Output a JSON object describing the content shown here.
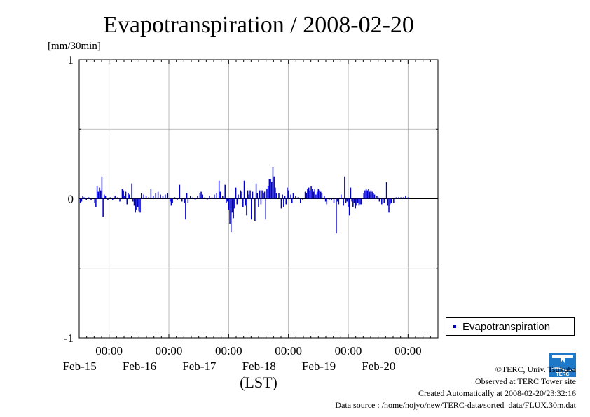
{
  "chart_data": {
    "type": "bar",
    "title": "Evapotranspiration / 2008-02-20",
    "ylabel": "[mm/30min]",
    "xlabel": "(LST)",
    "ylim": [
      -1,
      1
    ],
    "y_ticks": [
      "1",
      "0",
      "-1"
    ],
    "x_range_days": [
      14.5,
      20.5
    ],
    "x_ticks": [
      {
        "time": "00:00",
        "date": "Feb-15"
      },
      {
        "time": "00:00",
        "date": "Feb-16"
      },
      {
        "time": "00:00",
        "date": "Feb-17"
      },
      {
        "time": "00:00",
        "date": "Feb-18"
      },
      {
        "time": "00:00",
        "date": "Feb-19"
      },
      {
        "time": "00:00",
        "date": "Feb-20"
      }
    ],
    "grid": true,
    "legend_position": "right",
    "series": [
      {
        "name": "Evapotranspiration",
        "color": "#0000c8",
        "interval": "30min",
        "points": [
          [
            14.52,
            -0.03
          ],
          [
            14.54,
            -0.02
          ],
          [
            14.56,
            0.02
          ],
          [
            14.58,
            0.01
          ],
          [
            14.6,
            0
          ],
          [
            14.62,
            -0.01
          ],
          [
            14.66,
            0.01
          ],
          [
            14.7,
            -0.01
          ],
          [
            14.76,
            -0.03
          ],
          [
            14.78,
            -0.06
          ],
          [
            14.8,
            0.09
          ],
          [
            14.82,
            0.05
          ],
          [
            14.84,
            0.08
          ],
          [
            14.86,
            0.06
          ],
          [
            14.88,
            0.16
          ],
          [
            14.9,
            -0.13
          ],
          [
            14.92,
            0.03
          ],
          [
            14.94,
            0.02
          ],
          [
            14.98,
            -0.01
          ],
          [
            15.02,
            0.01
          ],
          [
            15.06,
            -0.01
          ],
          [
            15.1,
            0.02
          ],
          [
            15.14,
            0.01
          ],
          [
            15.18,
            -0.02
          ],
          [
            15.22,
            0.07
          ],
          [
            15.24,
            0.06
          ],
          [
            15.26,
            0.02
          ],
          [
            15.28,
            0.05
          ],
          [
            15.3,
            -0.04
          ],
          [
            15.32,
            0.04
          ],
          [
            15.34,
            0.03
          ],
          [
            15.38,
            0.11
          ],
          [
            15.4,
            -0.02
          ],
          [
            15.42,
            -0.05
          ],
          [
            15.44,
            -0.1
          ],
          [
            15.46,
            -0.08
          ],
          [
            15.48,
            -0.06
          ],
          [
            15.5,
            -0.09
          ],
          [
            15.52,
            -0.1
          ],
          [
            15.54,
            0.04
          ],
          [
            15.58,
            0.03
          ],
          [
            15.62,
            0.02
          ],
          [
            15.66,
            0.01
          ],
          [
            15.7,
            0.07
          ],
          [
            15.74,
            0.02
          ],
          [
            15.78,
            0.04
          ],
          [
            15.82,
            0.05
          ],
          [
            15.86,
            0.03
          ],
          [
            15.9,
            0.02
          ],
          [
            15.94,
            0.03
          ],
          [
            15.98,
            0.04
          ],
          [
            16.02,
            -0.02
          ],
          [
            16.04,
            -0.05
          ],
          [
            16.06,
            -0.03
          ],
          [
            16.1,
            0.01
          ],
          [
            16.14,
            -0.01
          ],
          [
            16.18,
            0.1
          ],
          [
            16.22,
            -0.02
          ],
          [
            16.26,
            -0.03
          ],
          [
            16.28,
            -0.15
          ],
          [
            16.3,
            0.04
          ],
          [
            16.32,
            -0.03
          ],
          [
            16.36,
            0.02
          ],
          [
            16.4,
            0.01
          ],
          [
            16.44,
            -0.01
          ],
          [
            16.48,
            0.02
          ],
          [
            16.52,
            0.04
          ],
          [
            16.54,
            0.05
          ],
          [
            16.56,
            0.03
          ],
          [
            16.6,
            0.01
          ],
          [
            16.64,
            -0.01
          ],
          [
            16.68,
            0.02
          ],
          [
            16.72,
            0.01
          ],
          [
            16.76,
            0.03
          ],
          [
            16.8,
            0.04
          ],
          [
            16.84,
            0.13
          ],
          [
            16.86,
            0.05
          ],
          [
            16.9,
            0.02
          ],
          [
            16.94,
            0.1
          ],
          [
            16.96,
            -0.03
          ],
          [
            16.98,
            -0.02
          ],
          [
            17.0,
            -0.08
          ],
          [
            17.02,
            -0.18
          ],
          [
            17.04,
            -0.24
          ],
          [
            17.06,
            -0.1
          ],
          [
            17.08,
            -0.14
          ],
          [
            17.1,
            -0.07
          ],
          [
            17.12,
            0.08
          ],
          [
            17.14,
            -0.04
          ],
          [
            17.16,
            0.03
          ],
          [
            17.2,
            0.06
          ],
          [
            17.22,
            0.05
          ],
          [
            17.24,
            -0.06
          ],
          [
            17.26,
            0.13
          ],
          [
            17.28,
            -0.05
          ],
          [
            17.3,
            -0.12
          ],
          [
            17.32,
            0.06
          ],
          [
            17.34,
            0.03
          ],
          [
            17.36,
            0.06
          ],
          [
            17.38,
            -0.15
          ],
          [
            17.4,
            0.05
          ],
          [
            17.44,
            -0.16
          ],
          [
            17.46,
            0.11
          ],
          [
            17.48,
            0.04
          ],
          [
            17.5,
            -0.06
          ],
          [
            17.52,
            0.06
          ],
          [
            17.54,
            -0.04
          ],
          [
            17.56,
            0.06
          ],
          [
            17.58,
            0.04
          ],
          [
            17.6,
            0.05
          ],
          [
            17.62,
            -0.15
          ],
          [
            17.64,
            0.07
          ],
          [
            17.66,
            0.09
          ],
          [
            17.68,
            0.14
          ],
          [
            17.7,
            0.14
          ],
          [
            17.72,
            0.12
          ],
          [
            17.74,
            0.23
          ],
          [
            17.76,
            0.16
          ],
          [
            17.78,
            0.08
          ],
          [
            17.8,
            0.04
          ],
          [
            17.84,
            0.04
          ],
          [
            17.88,
            -0.07
          ],
          [
            17.9,
            0.03
          ],
          [
            17.92,
            -0.06
          ],
          [
            17.94,
            0.02
          ],
          [
            17.96,
            -0.04
          ],
          [
            17.98,
            0.08
          ],
          [
            18.0,
            0.06
          ],
          [
            18.04,
            0.03
          ],
          [
            18.06,
            -0.03
          ],
          [
            18.08,
            0.04
          ],
          [
            18.12,
            0.02
          ],
          [
            18.16,
            0.01
          ],
          [
            18.2,
            -0.03
          ],
          [
            18.24,
            -0.01
          ],
          [
            18.28,
            0.05
          ],
          [
            18.3,
            0.04
          ],
          [
            18.32,
            0.07
          ],
          [
            18.34,
            0.08
          ],
          [
            18.36,
            0.06
          ],
          [
            18.38,
            0.09
          ],
          [
            18.4,
            0.07
          ],
          [
            18.42,
            0.05
          ],
          [
            18.44,
            0.07
          ],
          [
            18.46,
            0.03
          ],
          [
            18.48,
            0.05
          ],
          [
            18.5,
            0.07
          ],
          [
            18.52,
            0.06
          ],
          [
            18.54,
            0.05
          ],
          [
            18.56,
            0.04
          ],
          [
            18.6,
            0.02
          ],
          [
            18.62,
            -0.02
          ],
          [
            18.64,
            -0.04
          ],
          [
            18.68,
            -0.01
          ],
          [
            18.72,
            -0.01
          ],
          [
            18.76,
            -0.03
          ],
          [
            18.8,
            -0.25
          ],
          [
            18.82,
            -0.02
          ],
          [
            18.84,
            -0.04
          ],
          [
            18.88,
            0.03
          ],
          [
            18.92,
            -0.05
          ],
          [
            18.94,
            0.16
          ],
          [
            18.96,
            -0.03
          ],
          [
            18.98,
            -0.02
          ],
          [
            19.0,
            -0.06
          ],
          [
            19.02,
            -0.12
          ],
          [
            19.04,
            0.08
          ],
          [
            19.06,
            -0.02
          ],
          [
            19.08,
            -0.06
          ],
          [
            19.1,
            -0.03
          ],
          [
            19.12,
            -0.07
          ],
          [
            19.14,
            -0.05
          ],
          [
            19.16,
            -0.03
          ],
          [
            19.18,
            -0.05
          ],
          [
            19.2,
            -0.04
          ],
          [
            19.22,
            -0.04
          ],
          [
            19.26,
            0.04
          ],
          [
            19.28,
            0.06
          ],
          [
            19.3,
            0.07
          ],
          [
            19.32,
            0.06
          ],
          [
            19.34,
            0.07
          ],
          [
            19.36,
            0.05
          ],
          [
            19.38,
            0.06
          ],
          [
            19.4,
            0.05
          ],
          [
            19.42,
            0.04
          ],
          [
            19.44,
            0.03
          ],
          [
            19.48,
            0.02
          ],
          [
            19.5,
            0.01
          ],
          [
            19.52,
            -0.02
          ],
          [
            19.56,
            -0.04
          ],
          [
            19.6,
            -0.03
          ],
          [
            19.64,
            0.12
          ],
          [
            19.66,
            -0.05
          ],
          [
            19.68,
            -0.1
          ],
          [
            19.7,
            -0.04
          ],
          [
            19.72,
            -0.03
          ],
          [
            19.76,
            -0.03
          ],
          [
            19.8,
            0.01
          ],
          [
            19.84,
            0.01
          ],
          [
            19.88,
            0.01
          ],
          [
            19.92,
            0.01
          ],
          [
            19.96,
            0.02
          ],
          [
            20.0,
            0.01
          ]
        ]
      }
    ]
  },
  "legend": {
    "items": [
      {
        "label": "Evapotranspiration",
        "color": "#0000c8"
      }
    ]
  },
  "footer": {
    "copyright": "©TERC, Univ. Tsukuba",
    "observed": "Observed at TERC Tower site",
    "created": "Created Automatically at 2008-02-20/23:32:16",
    "source": "Data source : /home/hojyo/new/TERC-data/sorted_data/FLUX.30m.dat"
  },
  "logo": {
    "text": "TERC",
    "color": "#1e78c8"
  }
}
